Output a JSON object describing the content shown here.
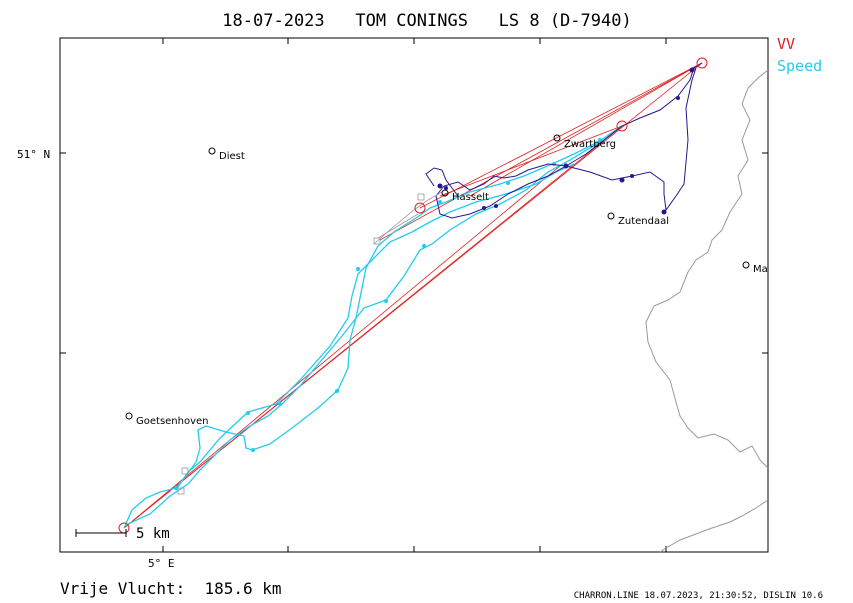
{
  "header": {
    "title": "18-07-2023   TOM CONINGS   LS 8 (D-7940)"
  },
  "legend": [
    {
      "label": "VV",
      "color": "#e02020"
    },
    {
      "label": "Speed",
      "color": "#22ccee"
    }
  ],
  "axes": {
    "lat_label": "51° N",
    "lon_label": "5° E"
  },
  "places": [
    {
      "name": "Diest"
    },
    {
      "name": "Zwartberg"
    },
    {
      "name": "Hasselt"
    },
    {
      "name": "Zutendaal"
    },
    {
      "name": "Ma"
    },
    {
      "name": "Goetsenhoven"
    }
  ],
  "scale": {
    "label": "5 km"
  },
  "footer": {
    "distance": "Vrije Vlucht:  185.6 km",
    "credit": "CHARRON.LINE 18.07.2023, 21:30:52, DISLIN 10.6"
  },
  "colors": {
    "frame": "#000000",
    "track_dark": "#2a1590",
    "track_speed": "#22ccee",
    "task_lines": "#e02020",
    "border": "#999999",
    "gray_track": "#9a9a9a"
  }
}
